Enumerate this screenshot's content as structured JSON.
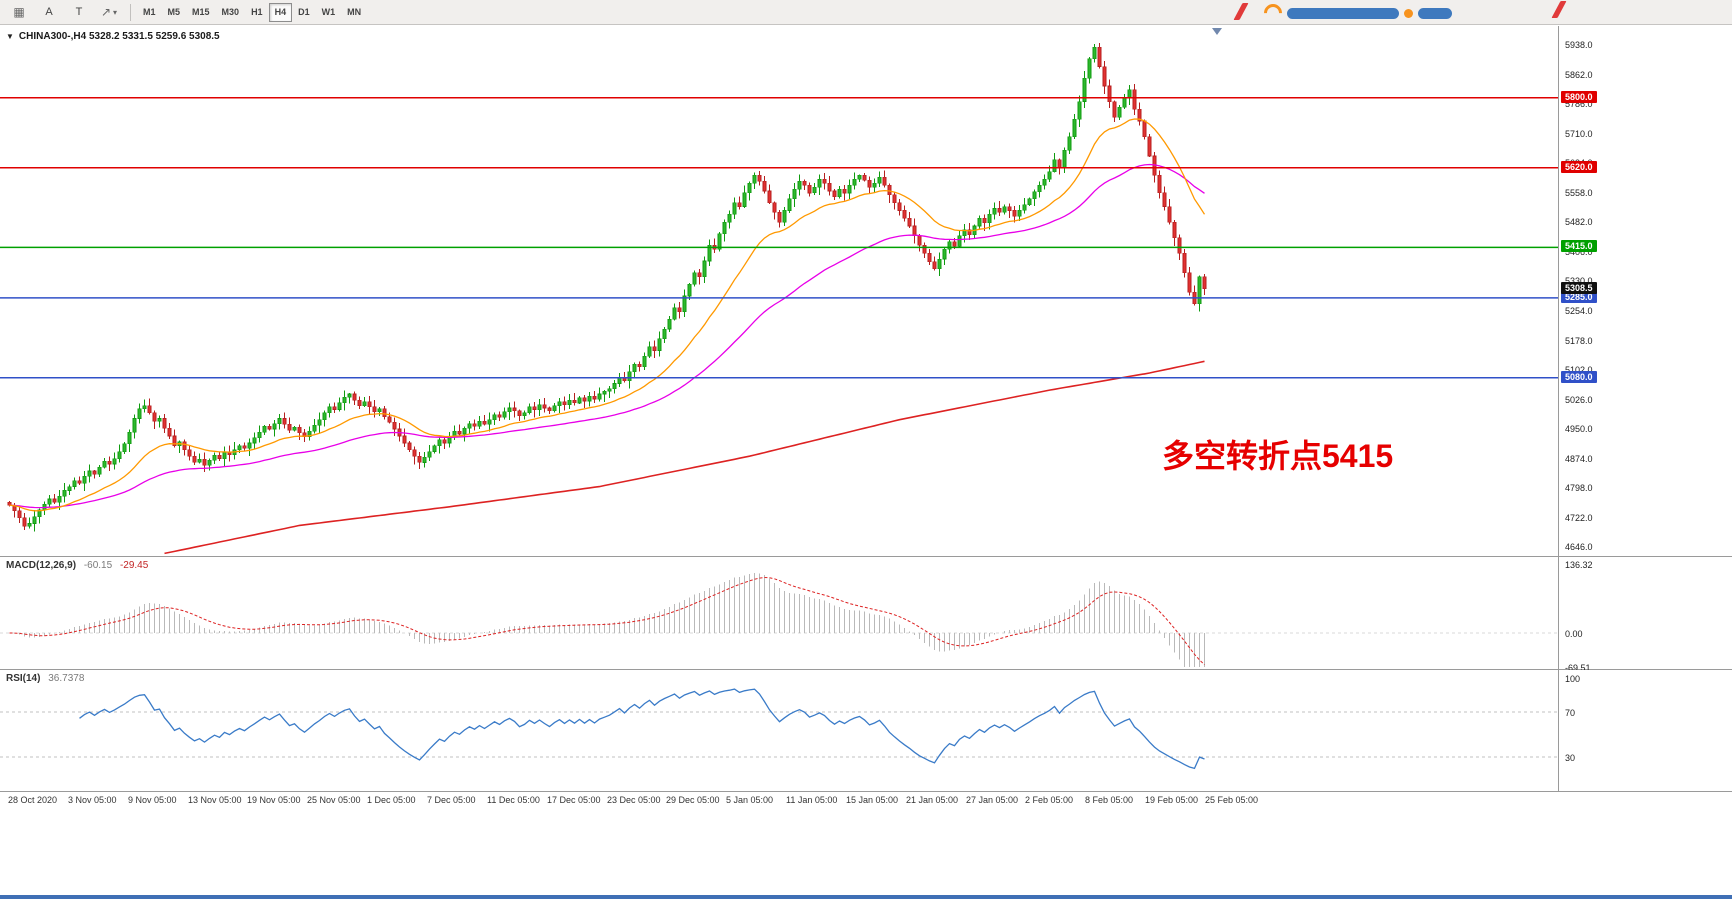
{
  "toolbar": {
    "tools": {
      "grid_icon": "▦",
      "a_label": "A",
      "t_label": "T",
      "trend_icon": "↗",
      "caret_icon": "▾"
    },
    "timeframes": [
      {
        "label": "M1"
      },
      {
        "label": "M5"
      },
      {
        "label": "M15"
      },
      {
        "label": "M30"
      },
      {
        "label": "H1"
      },
      {
        "label": "H4",
        "active": true
      },
      {
        "label": "D1"
      },
      {
        "label": "W1"
      },
      {
        "label": "MN"
      }
    ]
  },
  "chart": {
    "collapse_icon": "▼",
    "header": "CHINA300-,H4  5328.2 5331.5 5259.6 5308.5"
  },
  "colors": {
    "up": "#2eb82e",
    "up_stroke": "#0f9b0f",
    "down": "#e23232",
    "down_stroke": "#b51f1f",
    "ma_fast": "#ff9900",
    "ma_mid": "#e800e8",
    "ma_slow": "#dd2222",
    "macd_hist": "#b9b9b9",
    "macd_signal": "#dd2222",
    "rsi_line": "#3a7bc8",
    "levels_dash": "#c0c0c0",
    "line_red": "#e00000",
    "line_green": "#00a000",
    "line_blue": "#3050c8",
    "current_tag_bg": "#101010",
    "annotation": "#e60000"
  },
  "chart_data": {
    "type": "candlestick",
    "symbol": "CHINA300-",
    "timeframe": "H4",
    "last_bar": {
      "open": 5328.2,
      "high": 5331.5,
      "low": 5259.6,
      "close": 5308.5
    },
    "ylim": [
      4646,
      5938
    ],
    "y_ticks": [
      "5938.0",
      "5862.0",
      "5786.0",
      "5710.0",
      "5634.0",
      "5558.0",
      "5482.0",
      "5406.0",
      "5330.0",
      "5254.0",
      "5178.0",
      "5102.0",
      "5026.0",
      "4950.0",
      "4874.0",
      "4798.0",
      "4722.0",
      "4646.0"
    ],
    "x_labels": [
      "28 Oct 2020",
      "3 Nov 05:00",
      "9 Nov 05:00",
      "13 Nov 05:00",
      "19 Nov 05:00",
      "25 Nov 05:00",
      "1 Dec 05:00",
      "7 Dec 05:00",
      "11 Dec 05:00",
      "17 Dec 05:00",
      "23 Dec 05:00",
      "29 Dec 05:00",
      "5 Jan 05:00",
      "11 Jan 05:00",
      "15 Jan 05:00",
      "21 Jan 05:00",
      "27 Jan 05:00",
      "2 Feb 05:00",
      "8 Feb 05:00",
      "19 Feb 05:00",
      "25 Feb 05:00"
    ],
    "first_open": 4760,
    "closes": [
      4752,
      4738,
      4720,
      4698,
      4705,
      4722,
      4740,
      4755,
      4768,
      4760,
      4775,
      4790,
      4800,
      4815,
      4808,
      4826,
      4840,
      4832,
      4850,
      4865,
      4858,
      4872,
      4890,
      4910,
      4940,
      4975,
      5000,
      5008,
      4990,
      4968,
      4975,
      4950,
      4930,
      4905,
      4915,
      4895,
      4878,
      4862,
      4870,
      4855,
      4868,
      4880,
      4872,
      4890,
      4882,
      4895,
      4905,
      4898,
      4912,
      4925,
      4940,
      4955,
      4948,
      4962,
      4975,
      4960,
      4945,
      4952,
      4938,
      4928,
      4942,
      4958,
      4972,
      4990,
      5005,
      4998,
      5015,
      5030,
      5038,
      5022,
      5008,
      5018,
      5005,
      4992,
      5000,
      4980,
      4965,
      4948,
      4930,
      4912,
      4895,
      4878,
      4862,
      4875,
      4890,
      4905,
      4920,
      4912,
      4928,
      4942,
      4935,
      4950,
      4962,
      4955,
      4968,
      4960,
      4972,
      4985,
      4978,
      4992,
      5002,
      4995,
      4982,
      4990,
      5005,
      4998,
      5010,
      5002,
      4995,
      5008,
      5018,
      5010,
      5022,
      5015,
      5028,
      5020,
      5032,
      5025,
      5038,
      5045,
      5052,
      5065,
      5080,
      5072,
      5095,
      5115,
      5108,
      5135,
      5160,
      5150,
      5180,
      5205,
      5230,
      5260,
      5250,
      5290,
      5320,
      5350,
      5340,
      5380,
      5420,
      5410,
      5450,
      5480,
      5500,
      5530,
      5520,
      5555,
      5580,
      5600,
      5585,
      5560,
      5530,
      5505,
      5480,
      5510,
      5540,
      5565,
      5585,
      5575,
      5555,
      5570,
      5590,
      5580,
      5560,
      5545,
      5565,
      5555,
      5575,
      5590,
      5600,
      5588,
      5570,
      5580,
      5595,
      5575,
      5550,
      5530,
      5510,
      5490,
      5470,
      5445,
      5420,
      5400,
      5378,
      5360,
      5385,
      5410,
      5430,
      5418,
      5445,
      5460,
      5448,
      5470,
      5490,
      5478,
      5500,
      5515,
      5505,
      5520,
      5510,
      5495,
      5510,
      5525,
      5540,
      5558,
      5575,
      5590,
      5610,
      5640,
      5620,
      5665,
      5700,
      5745,
      5790,
      5850,
      5900,
      5930,
      5880,
      5830,
      5790,
      5750,
      5775,
      5800,
      5820,
      5770,
      5740,
      5700,
      5650,
      5600,
      5555,
      5520,
      5480,
      5440,
      5400,
      5350,
      5300,
      5270,
      5340,
      5308.5
    ],
    "hlines": [
      {
        "price": 5800.0,
        "label": "5800.0",
        "color": "#e00000"
      },
      {
        "price": 5620.0,
        "label": "5620.0",
        "color": "#e00000"
      },
      {
        "price": 5415.0,
        "label": "5415.0",
        "color": "#00a000"
      },
      {
        "price": 5285.0,
        "label": "5285.0",
        "color": "#3050c8"
      },
      {
        "price": 5080.0,
        "label": "5080.0",
        "color": "#3050c8"
      }
    ],
    "current_price": {
      "price": 5308.5,
      "label": "5308.5"
    },
    "ma_long_points": [
      [
        31,
        4628
      ],
      [
        58,
        4700
      ],
      [
        88,
        4748
      ],
      [
        118,
        4800
      ],
      [
        148,
        4878
      ],
      [
        178,
        4972
      ],
      [
        208,
        5048
      ],
      [
        228,
        5092
      ],
      [
        239,
        5122
      ]
    ],
    "annotation": {
      "text": "多空转折点5415",
      "color": "#e60000"
    },
    "indicators": {
      "macd": {
        "title": "MACD(12,26,9)",
        "main_value": "-60.15",
        "signal_value": "-29.45",
        "axis": [
          "136.32",
          "0.00",
          "-69.51"
        ],
        "params": [
          12,
          26,
          9
        ]
      },
      "rsi": {
        "title": "RSI(14)",
        "value": "36.7378",
        "axis": [
          "100",
          "70",
          "30"
        ],
        "levels": [
          70,
          30
        ],
        "period": 14
      }
    }
  }
}
